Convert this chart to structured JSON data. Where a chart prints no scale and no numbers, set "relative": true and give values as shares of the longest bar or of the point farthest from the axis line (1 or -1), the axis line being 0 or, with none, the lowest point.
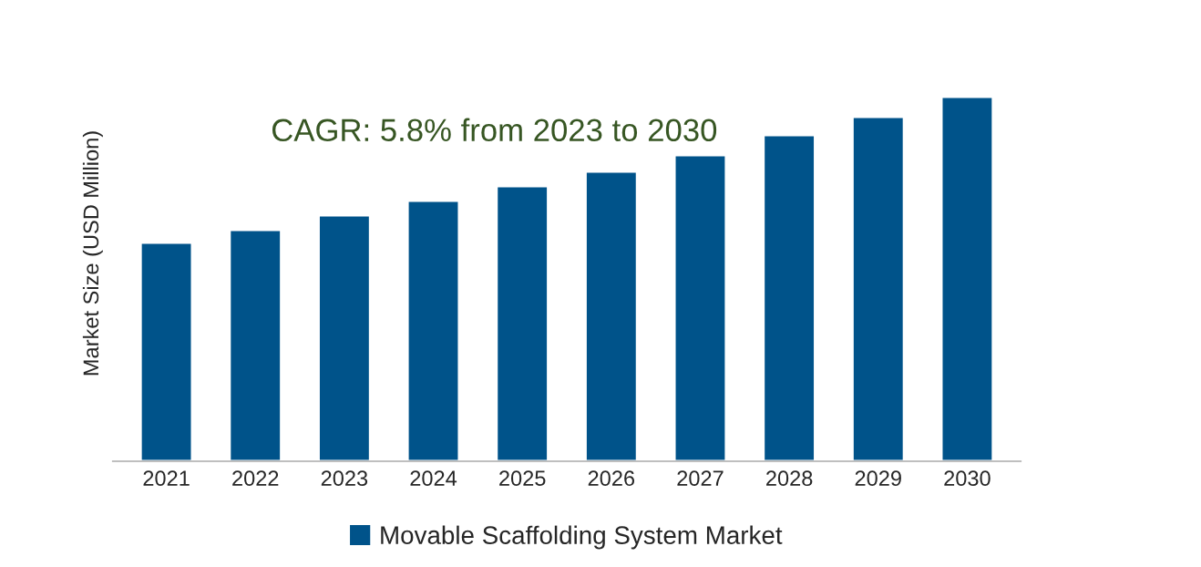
{
  "chart_data": {
    "type": "bar",
    "ylabel": "Market Size (USD Million)",
    "relative": true,
    "categories": [
      "2021",
      "2022",
      "2023",
      "2024",
      "2025",
      "2026",
      "2027",
      "2028",
      "2029",
      "2030"
    ],
    "series": [
      {
        "name": "Movable Scaffolding System Market",
        "color": "#00538a",
        "values": [
          0.6,
          0.635,
          0.675,
          0.715,
          0.755,
          0.795,
          0.84,
          0.895,
          0.945,
          1.0
        ]
      }
    ],
    "annotations": [
      "CAGR: 5.8% from 2023 to 2030"
    ],
    "legend": "bottom",
    "grid": false
  }
}
